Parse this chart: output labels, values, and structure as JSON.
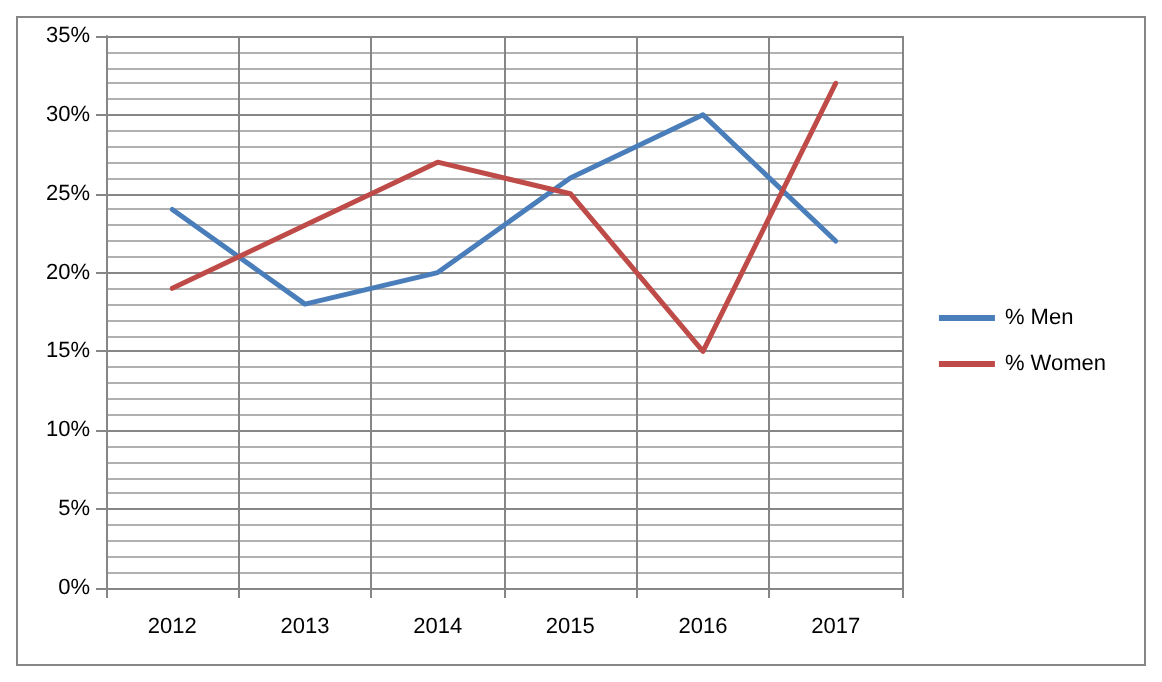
{
  "chart_data": {
    "type": "line",
    "categories": [
      "2012",
      "2013",
      "2014",
      "2015",
      "2016",
      "2017"
    ],
    "series": [
      {
        "name": "% Men",
        "color": "#4a7ebb",
        "values": [
          24,
          18,
          20,
          26,
          30,
          22
        ]
      },
      {
        "name": "% Women",
        "color": "#be4b48",
        "values": [
          19,
          23,
          27,
          25,
          15,
          32
        ]
      }
    ],
    "ylim": [
      0,
      35
    ],
    "yticks": [
      {
        "value": 0,
        "label": "0%"
      },
      {
        "value": 5,
        "label": "5%"
      },
      {
        "value": 10,
        "label": "10%"
      },
      {
        "value": 15,
        "label": "15%"
      },
      {
        "value": 20,
        "label": "20%"
      },
      {
        "value": 25,
        "label": "25%"
      },
      {
        "value": 30,
        "label": "30%"
      },
      {
        "value": 35,
        "label": "35%"
      }
    ],
    "grid": true,
    "legend": "right",
    "marker": "none",
    "line_style": "solid"
  }
}
